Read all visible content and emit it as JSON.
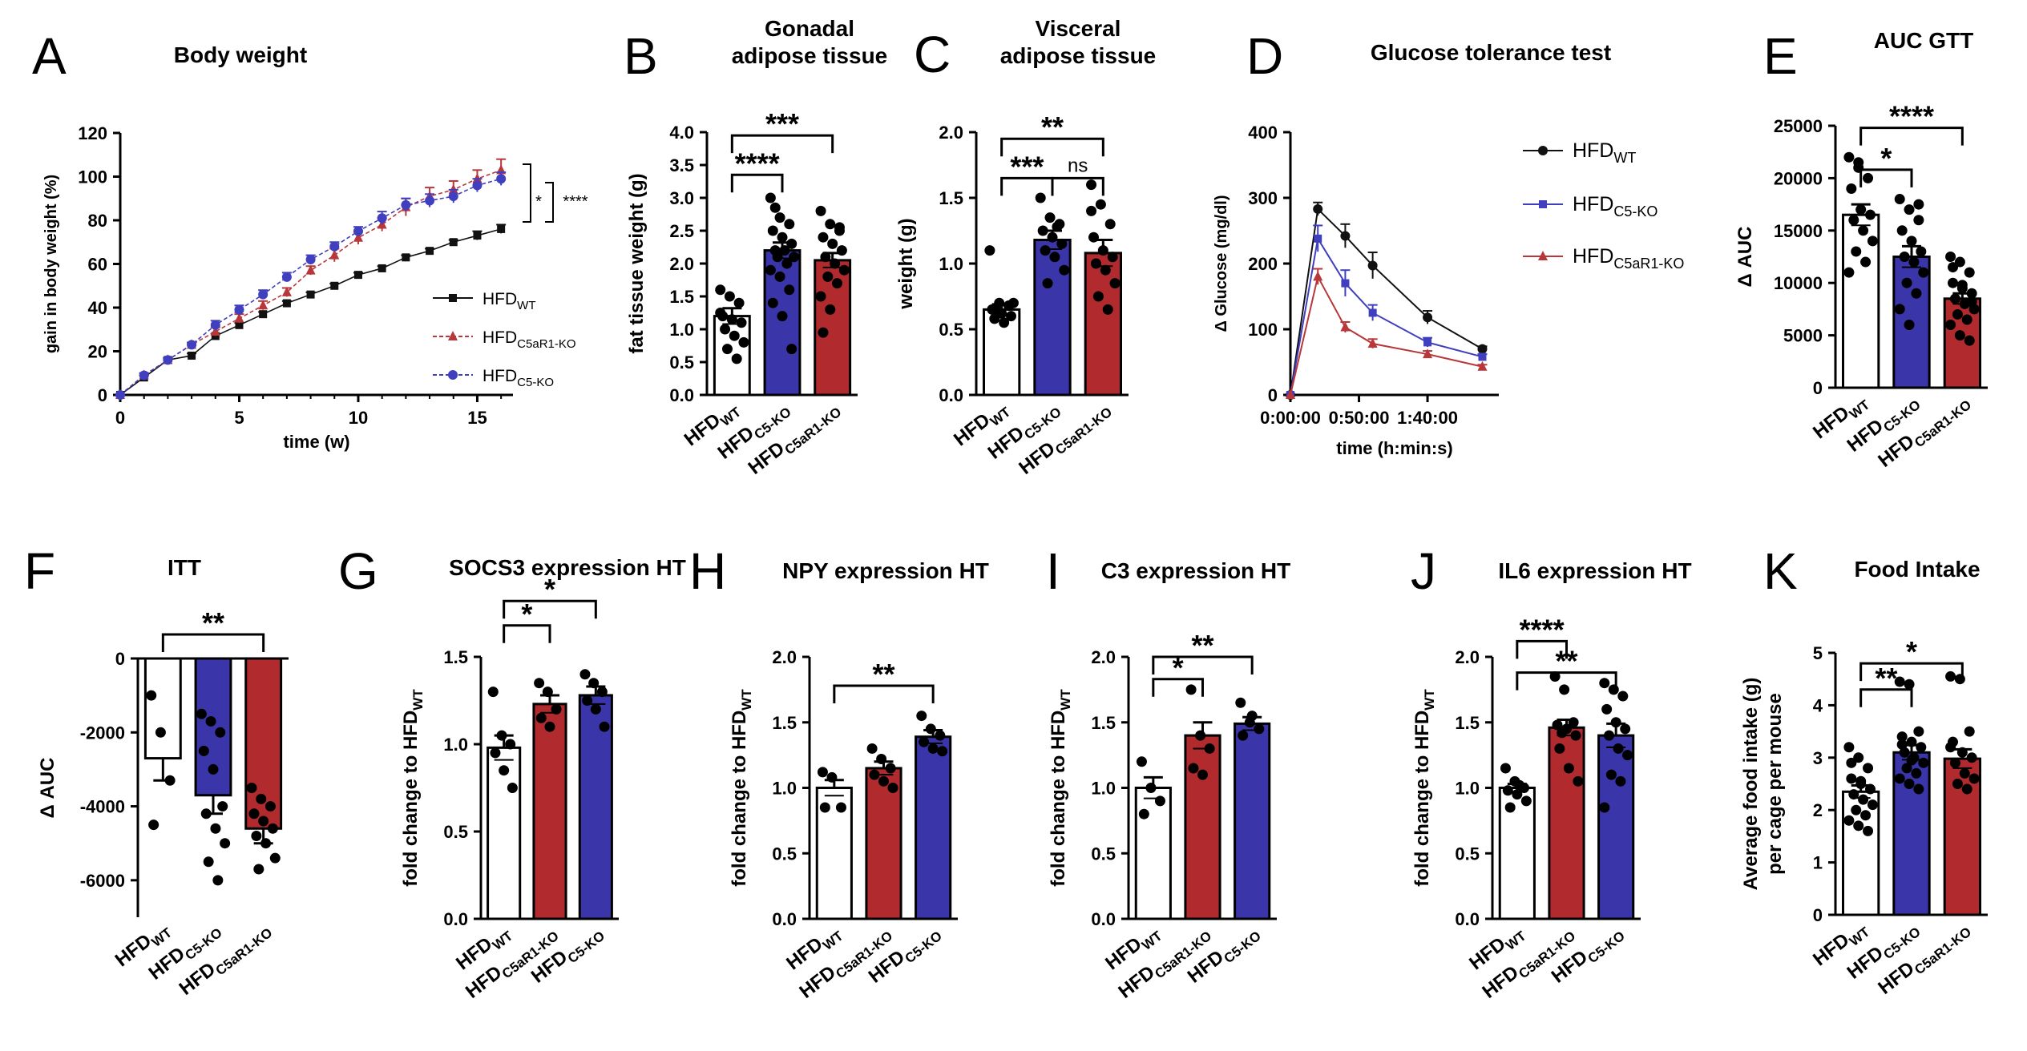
{
  "colors": {
    "wt": "#ffffff",
    "c5": "#3a35a8",
    "c5ar1": "#b02a2e",
    "wt_line": "#111111",
    "c5_line": "#3f3fbf",
    "c5ar1_line": "#b8373a"
  },
  "panels": [
    {
      "letter": "A",
      "title_lines": [
        "Body weight"
      ],
      "type": "line",
      "ylabel": "gain in body weight (%)",
      "xlabel": "time (w)",
      "yticks": [
        "0",
        "20",
        "40",
        "60",
        "80",
        "100",
        "120"
      ],
      "xticks": [
        "0",
        "5",
        "10",
        "15"
      ],
      "legend": [
        {
          "base": "HFD",
          "sub": "WT"
        },
        {
          "base": "HFD",
          "sub": "C5aR1-KO"
        },
        {
          "base": "HFD",
          "sub": "C5-KO"
        }
      ],
      "sig": [
        "*",
        "****"
      ]
    },
    {
      "letter": "B",
      "title_lines": [
        "Gonadal",
        "adipose tissue"
      ],
      "type": "bar",
      "ylabel": "fat tissue weight (g)",
      "yticks": [
        "0.0",
        "0.5",
        "1.0",
        "1.5",
        "2.0",
        "2.5",
        "3.0",
        "3.5",
        "4.0"
      ],
      "groups": [
        {
          "base": "HFD",
          "sub": "WT"
        },
        {
          "base": "HFD",
          "sub": "C5-KO"
        },
        {
          "base": "HFD",
          "sub": "C5aR1-KO"
        }
      ],
      "sig": [
        "****",
        "***"
      ]
    },
    {
      "letter": "C",
      "title_lines": [
        "Visceral",
        "adipose tissue"
      ],
      "type": "bar",
      "ylabel": "weight (g)",
      "yticks": [
        "0.0",
        "0.5",
        "1.0",
        "1.5",
        "2.0"
      ],
      "groups": [
        {
          "base": "HFD",
          "sub": "WT"
        },
        {
          "base": "HFD",
          "sub": "C5-KO"
        },
        {
          "base": "HFD",
          "sub": "C5aR1-KO"
        }
      ],
      "sig": [
        "***",
        "ns",
        "**"
      ]
    },
    {
      "letter": "D",
      "title_lines": [
        "Glucose tolerance test"
      ],
      "type": "line",
      "ylabel": "Δ Glucose (mg/dl)",
      "xlabel": "time (h:min:s)",
      "yticks": [
        "0",
        "100",
        "200",
        "300",
        "400"
      ],
      "xticks": [
        "0:00:00",
        "0:50:00",
        "1:40:00"
      ],
      "legend": [
        {
          "base": "HFD",
          "sub": "WT"
        },
        {
          "base": "HFD",
          "sub": "C5-KO"
        },
        {
          "base": "HFD",
          "sub": "C5aR1-KO"
        }
      ]
    },
    {
      "letter": "E",
      "title_lines": [
        "AUC GTT"
      ],
      "type": "bar",
      "ylabel": "Δ AUC",
      "yticks": [
        "0",
        "5000",
        "10000",
        "15000",
        "20000",
        "25000"
      ],
      "groups": [
        {
          "base": "HFD",
          "sub": "WT"
        },
        {
          "base": "HFD",
          "sub": "C5-KO"
        },
        {
          "base": "HFD",
          "sub": "C5aR1-KO"
        }
      ],
      "sig": [
        "*",
        "****"
      ]
    },
    {
      "letter": "F",
      "title_lines": [
        "ITT"
      ],
      "type": "bar",
      "ylabel": "Δ AUC",
      "yticks": [
        "-6000",
        "-4000",
        "-2000",
        "0"
      ],
      "groups": [
        {
          "base": "HFD",
          "sub": "WT"
        },
        {
          "base": "HFD",
          "sub": "C5-KO"
        },
        {
          "base": "HFD",
          "sub": "C5aR1-KO"
        }
      ],
      "sig": [
        "**"
      ]
    },
    {
      "letter": "G",
      "title_lines": [
        "SOCS3 expression HT"
      ],
      "type": "bar",
      "ylabel": "fold change to HFD",
      "ylabel_sub": "WT",
      "yticks": [
        "0.0",
        "0.5",
        "1.0",
        "1.5"
      ],
      "groups": [
        {
          "base": "HFD",
          "sub": "WT"
        },
        {
          "base": "HFD",
          "sub": "C5aR1-KO"
        },
        {
          "base": "HFD",
          "sub": "C5-KO"
        }
      ],
      "sig": [
        "*",
        "*"
      ]
    },
    {
      "letter": "H",
      "title_lines": [
        "NPY expression HT"
      ],
      "type": "bar",
      "ylabel": "fold change to HFD",
      "ylabel_sub": "WT",
      "yticks": [
        "0.0",
        "0.5",
        "1.0",
        "1.5",
        "2.0"
      ],
      "groups": [
        {
          "base": "HFD",
          "sub": "WT"
        },
        {
          "base": "HFD",
          "sub": "C5aR1-KO"
        },
        {
          "base": "HFD",
          "sub": "C5-KO"
        }
      ],
      "sig": [
        "**"
      ]
    },
    {
      "letter": "I",
      "title_lines": [
        "C3 expression HT"
      ],
      "type": "bar",
      "ylabel": "fold change to HFD",
      "ylabel_sub": "WT",
      "yticks": [
        "0.0",
        "0.5",
        "1.0",
        "1.5",
        "2.0"
      ],
      "groups": [
        {
          "base": "HFD",
          "sub": "WT"
        },
        {
          "base": "HFD",
          "sub": "C5aR1-KO"
        },
        {
          "base": "HFD",
          "sub": "C5-KO"
        }
      ],
      "sig": [
        "*",
        "**"
      ]
    },
    {
      "letter": "J",
      "title_lines": [
        "IL6 expression HT"
      ],
      "type": "bar",
      "ylabel": "fold change to HFD",
      "ylabel_sub": "WT",
      "yticks": [
        "0.0",
        "0.5",
        "1.0",
        "1.5",
        "2.0"
      ],
      "groups": [
        {
          "base": "HFD",
          "sub": "WT"
        },
        {
          "base": "HFD",
          "sub": "C5aR1-KO"
        },
        {
          "base": "HFD",
          "sub": "C5-KO"
        }
      ],
      "sig": [
        "****",
        "**"
      ]
    },
    {
      "letter": "K",
      "title_lines": [
        "Food Intake"
      ],
      "type": "bar",
      "ylabel": "Average food intake (g)",
      "ylabel2": "per cage per mouse",
      "yticks": [
        "0",
        "1",
        "2",
        "3",
        "4",
        "5"
      ],
      "groups": [
        {
          "base": "HFD",
          "sub": "WT"
        },
        {
          "base": "HFD",
          "sub": "C5-KO"
        },
        {
          "base": "HFD",
          "sub": "C5aR1-KO"
        }
      ],
      "sig": [
        "**",
        "*"
      ]
    }
  ],
  "chart_data": [
    {
      "panel": "A",
      "type": "line",
      "x": [
        0,
        1,
        2,
        3,
        4,
        5,
        6,
        7,
        8,
        9,
        10,
        11,
        12,
        13,
        14,
        15,
        16
      ],
      "xlim": [
        0,
        16.5
      ],
      "ylim": [
        0,
        120
      ],
      "series": [
        {
          "name": "HFDWT",
          "color": "wt_line",
          "marker": "square",
          "values": [
            0,
            8,
            16,
            18,
            27,
            32,
            37,
            42,
            46,
            50,
            55,
            58,
            63,
            66,
            70,
            73,
            76
          ],
          "err": [
            0,
            1,
            1,
            1,
            1,
            1,
            1,
            1,
            1,
            1,
            1,
            1,
            1,
            1,
            1,
            2,
            2
          ]
        },
        {
          "name": "HFDC5aR1-KO",
          "color": "c5ar1_line",
          "marker": "triangle",
          "values": [
            0,
            9,
            16,
            23,
            29,
            35,
            41,
            47,
            57,
            64,
            72,
            78,
            86,
            91,
            94,
            99,
            103
          ],
          "err": [
            0,
            1,
            1,
            1,
            2,
            2,
            2,
            2,
            2,
            3,
            3,
            3,
            4,
            4,
            4,
            4,
            5
          ]
        },
        {
          "name": "HFDC5-KO",
          "color": "c5_line",
          "marker": "circle",
          "values": [
            0,
            9,
            16,
            23,
            32,
            39,
            46,
            54,
            62,
            68,
            75,
            81,
            87,
            89,
            91,
            96,
            99
          ],
          "err": [
            0,
            1,
            1,
            1,
            2,
            2,
            2,
            2,
            2,
            2,
            2,
            3,
            3,
            3,
            3,
            3,
            3
          ]
        }
      ]
    },
    {
      "panel": "B",
      "type": "bar",
      "ylim": [
        0,
        4
      ],
      "values": [
        1.2,
        2.2,
        2.05
      ],
      "err": [
        0.12,
        0.12,
        0.11
      ],
      "points": [
        [
          1.6,
          1.5,
          1.4,
          1.2,
          1.15,
          1.1,
          1.0,
          0.9,
          0.8,
          0.7,
          0.55,
          1.25
        ],
        [
          3.0,
          2.7,
          2.6,
          2.5,
          2.4,
          2.3,
          2.2,
          2.2,
          2.1,
          2.1,
          2.0,
          1.9,
          1.8,
          1.6,
          1.4,
          1.2,
          0.7,
          2.85
        ],
        [
          2.8,
          2.6,
          2.5,
          2.4,
          2.3,
          2.2,
          2.1,
          2.0,
          1.9,
          1.8,
          1.7,
          1.5,
          1.3,
          2.55,
          0.95
        ]
      ],
      "fills": [
        "wt",
        "c5",
        "c5ar1"
      ]
    },
    {
      "panel": "C",
      "type": "bar",
      "ylim": [
        0,
        2
      ],
      "values": [
        0.65,
        1.18,
        1.08
      ],
      "err": [
        0.04,
        0.07,
        0.1
      ],
      "points": [
        [
          1.1,
          0.7,
          0.68,
          0.65,
          0.62,
          0.6,
          0.58,
          0.55,
          0.7,
          0.63
        ],
        [
          1.5,
          1.35,
          1.3,
          1.25,
          1.2,
          1.15,
          1.1,
          1.05,
          0.95,
          0.85,
          1.28
        ],
        [
          1.6,
          1.45,
          1.3,
          1.2,
          1.1,
          1.05,
          1.0,
          0.95,
          0.85,
          0.75,
          0.65,
          1.4
        ]
      ],
      "fills": [
        "wt",
        "c5",
        "c5ar1"
      ]
    },
    {
      "panel": "D",
      "type": "line",
      "x": [
        0,
        20,
        40,
        60,
        100,
        140
      ],
      "xlim": [
        0,
        152
      ],
      "ylim": [
        0,
        400
      ],
      "series": [
        {
          "name": "HFDWT",
          "color": "wt_line",
          "marker": "circle",
          "values": [
            0,
            283,
            242,
            197,
            118,
            70
          ],
          "err": [
            0,
            10,
            18,
            20,
            10,
            4
          ]
        },
        {
          "name": "HFDC5-KO",
          "color": "c5_line",
          "marker": "square",
          "values": [
            0,
            238,
            170,
            125,
            80,
            58
          ],
          "err": [
            0,
            20,
            20,
            12,
            7,
            4
          ]
        },
        {
          "name": "HFDC5aR1-KO",
          "color": "c5ar1_line",
          "marker": "triangle",
          "values": [
            0,
            180,
            103,
            78,
            62,
            43
          ],
          "err": [
            0,
            12,
            8,
            7,
            5,
            3
          ]
        }
      ]
    },
    {
      "panel": "E",
      "type": "bar",
      "ylim": [
        0,
        25000
      ],
      "values": [
        16500,
        12500,
        8500
      ],
      "err": [
        1000,
        1000,
        500
      ],
      "points": [
        [
          22000,
          21000,
          20000,
          19000,
          17000,
          16500,
          16000,
          15000,
          14000,
          13000,
          12000,
          11000,
          21500
        ],
        [
          18000,
          17000,
          16000,
          15000,
          14000,
          13000,
          12500,
          12000,
          11000,
          10000,
          9000,
          7500,
          6000,
          17500
        ],
        [
          12500,
          12000,
          11000,
          10000,
          9500,
          9000,
          8500,
          8000,
          7500,
          7000,
          6500,
          6000,
          5000,
          4500,
          11500,
          9800,
          8200
        ]
      ],
      "fills": [
        "wt",
        "c5",
        "c5ar1"
      ]
    },
    {
      "panel": "F",
      "type": "bar",
      "ylim": [
        -7000,
        0
      ],
      "values": [
        -2700,
        -3700,
        -4600
      ],
      "err": [
        600,
        500,
        400
      ],
      "points": [
        [
          -1000,
          -2000,
          -3300,
          -4500
        ],
        [
          -1500,
          -1700,
          -2000,
          -2500,
          -3000,
          -4000,
          -4200,
          -4600,
          -5000,
          -5500,
          -6000
        ],
        [
          -3500,
          -3800,
          -4000,
          -4200,
          -4400,
          -4600,
          -4800,
          -5000,
          -5400,
          -5700
        ]
      ],
      "fills": [
        "wt",
        "c5",
        "c5ar1"
      ]
    },
    {
      "panel": "G",
      "type": "bar",
      "ylim": [
        0,
        1.5
      ],
      "values": [
        0.98,
        1.23,
        1.28
      ],
      "err": [
        0.07,
        0.05,
        0.05
      ],
      "points": [
        [
          1.3,
          1.05,
          1.0,
          0.95,
          0.85,
          0.75
        ],
        [
          1.35,
          1.3,
          1.2,
          1.15,
          1.1
        ],
        [
          1.4,
          1.35,
          1.3,
          1.25,
          1.2,
          1.1
        ]
      ],
      "fills": [
        "wt",
        "c5ar1",
        "c5"
      ]
    },
    {
      "panel": "H",
      "type": "bar",
      "ylim": [
        0,
        2
      ],
      "values": [
        1.0,
        1.15,
        1.39
      ],
      "err": [
        0.06,
        0.05,
        0.05
      ],
      "points": [
        [
          1.12,
          1.08,
          0.85,
          0.85
        ],
        [
          1.3,
          1.22,
          1.15,
          1.1,
          1.05,
          1.0
        ],
        [
          1.55,
          1.45,
          1.4,
          1.35,
          1.3,
          1.28
        ]
      ],
      "fills": [
        "wt",
        "c5ar1",
        "c5"
      ]
    },
    {
      "panel": "I",
      "type": "bar",
      "ylim": [
        0,
        2
      ],
      "values": [
        1.0,
        1.4,
        1.49
      ],
      "err": [
        0.08,
        0.1,
        0.05
      ],
      "points": [
        [
          1.2,
          1.0,
          0.9,
          0.8
        ],
        [
          1.75,
          1.4,
          1.3,
          1.15,
          1.1
        ],
        [
          1.65,
          1.5,
          1.45,
          1.4,
          1.55
        ]
      ],
      "fills": [
        "wt",
        "c5ar1",
        "c5"
      ]
    },
    {
      "panel": "J",
      "type": "bar",
      "ylim": [
        0,
        2
      ],
      "values": [
        1.0,
        1.46,
        1.4
      ],
      "err": [
        0.03,
        0.06,
        0.09
      ],
      "points": [
        [
          1.15,
          1.05,
          1.0,
          0.98,
          0.95,
          0.9,
          0.85,
          1.02
        ],
        [
          1.85,
          1.75,
          1.5,
          1.48,
          1.45,
          1.4,
          1.3,
          1.15,
          1.05,
          1.42
        ],
        [
          1.8,
          1.75,
          1.7,
          1.6,
          1.5,
          1.45,
          1.4,
          1.3,
          1.25,
          1.1,
          1.05,
          0.85
        ]
      ],
      "fills": [
        "wt",
        "c5ar1",
        "c5"
      ]
    },
    {
      "panel": "K",
      "type": "bar",
      "ylim": [
        0,
        5
      ],
      "values": [
        2.35,
        3.1,
        2.98
      ],
      "err": [
        0.12,
        0.14,
        0.18
      ],
      "points": [
        [
          3.2,
          3.0,
          2.8,
          2.6,
          2.5,
          2.4,
          2.3,
          2.2,
          2.1,
          2.0,
          1.9,
          1.8,
          1.7,
          1.6,
          2.9,
          2.55
        ],
        [
          4.45,
          4.4,
          3.5,
          3.4,
          3.3,
          3.2,
          3.1,
          3.0,
          2.9,
          2.8,
          2.7,
          2.6,
          2.5,
          2.4,
          3.25,
          2.95
        ],
        [
          4.55,
          4.5,
          3.5,
          3.3,
          3.1,
          3.0,
          2.9,
          2.7,
          2.6,
          2.5,
          2.4,
          3.2
        ]
      ],
      "fills": [
        "wt",
        "c5",
        "c5ar1"
      ]
    }
  ]
}
